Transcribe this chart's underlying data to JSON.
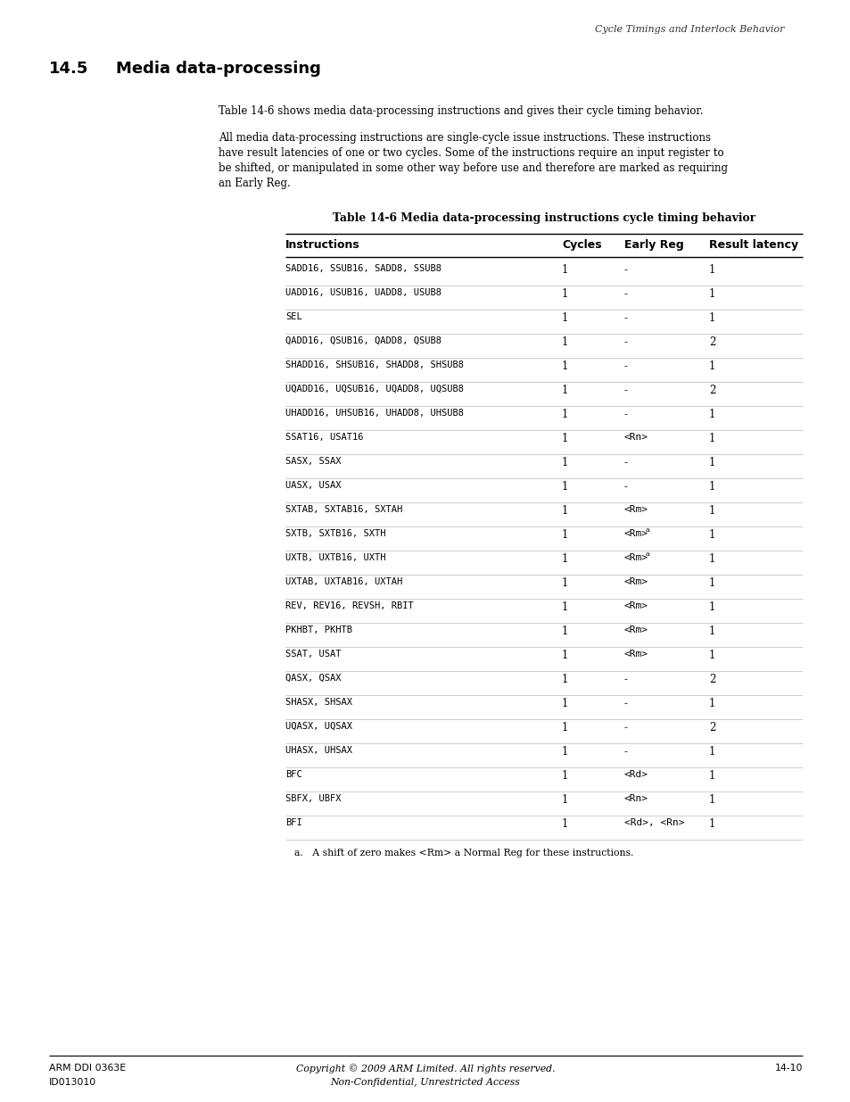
{
  "page_header_right": "Cycle Timings and Interlock Behavior",
  "section_number": "14.5",
  "section_title": "Media data-processing",
  "intro_para1": "Table 14-6 shows media data-processing instructions and gives their cycle timing behavior.",
  "intro_para2_lines": [
    "All media data-processing instructions are single-cycle issue instructions. These instructions",
    "have result latencies of one or two cycles. Some of the instructions require an input register to",
    "be shifted, or manipulated in some other way before use and therefore are marked as requiring",
    "an Early Reg."
  ],
  "table_title": "Table 14-6 Media data-processing instructions cycle timing behavior",
  "table_headers": [
    "Instructions",
    "Cycles",
    "Early Reg",
    "Result latency"
  ],
  "table_rows": [
    [
      "SADD16, SSUB16, SADD8, SSUB8",
      "1",
      "-",
      "1"
    ],
    [
      "UADD16, USUB16, UADD8, USUB8",
      "1",
      "-",
      "1"
    ],
    [
      "SEL",
      "1",
      "-",
      "1"
    ],
    [
      "QADD16, QSUB16, QADD8, QSUB8",
      "1",
      "-",
      "2"
    ],
    [
      "SHADD16, SHSUB16, SHADD8, SHSUB8",
      "1",
      "-",
      "1"
    ],
    [
      "UQADD16, UQSUB16, UQADD8, UQSUB8",
      "1",
      "-",
      "2"
    ],
    [
      "UHADD16, UHSUB16, UHADD8, UHSUB8",
      "1",
      "-",
      "1"
    ],
    [
      "SSAT16, USAT16",
      "1",
      "<Rn>",
      "1"
    ],
    [
      "SASX, SSAX",
      "1",
      "-",
      "1"
    ],
    [
      "UASX, USAX",
      "1",
      "-",
      "1"
    ],
    [
      "SXTAB, SXTAB16, SXTAH",
      "1",
      "<Rm>",
      "1"
    ],
    [
      "SXTB, SXTB16, SXTH",
      "1",
      "<Rm>a",
      "1"
    ],
    [
      "UXTB, UXTB16, UXTH",
      "1",
      "<Rm>a",
      "1"
    ],
    [
      "UXTAB, UXTAB16, UXTAH",
      "1",
      "<Rm>",
      "1"
    ],
    [
      "REV, REV16, REVSH, RBIT",
      "1",
      "<Rm>",
      "1"
    ],
    [
      "PKHBT, PKHTB",
      "1",
      "<Rm>",
      "1"
    ],
    [
      "SSAT, USAT",
      "1",
      "<Rm>",
      "1"
    ],
    [
      "QASX, QSAX",
      "1",
      "-",
      "2"
    ],
    [
      "SHASX, SHSAX",
      "1",
      "-",
      "1"
    ],
    [
      "UQASX, UQSAX",
      "1",
      "-",
      "2"
    ],
    [
      "UHASX, UHSAX",
      "1",
      "-",
      "1"
    ],
    [
      "BFC",
      "1",
      "<Rd>",
      "1"
    ],
    [
      "SBFX, UBFX",
      "1",
      "<Rn>",
      "1"
    ],
    [
      "BFI",
      "1",
      "<Rd>, <Rn>",
      "1"
    ]
  ],
  "footnote": "a.   A shift of zero makes <Rm> a Normal Reg for these instructions.",
  "footer_left1": "ARM DDI 0363E",
  "footer_left2": "ID013010",
  "footer_center1": "Copyright © 2009 ARM Limited. All rights reserved.",
  "footer_center2": "Non-Confidential, Unrestricted Access",
  "footer_right": "14-10"
}
